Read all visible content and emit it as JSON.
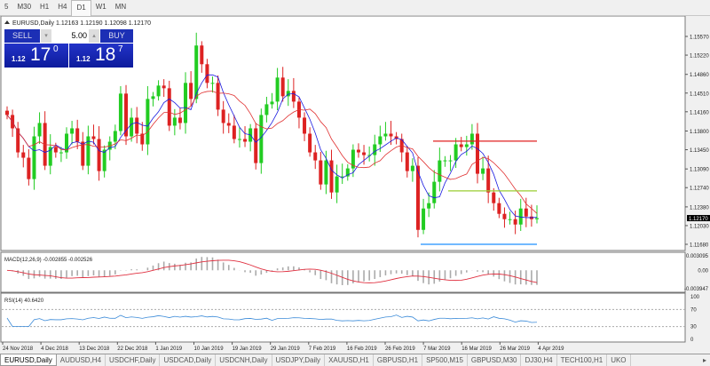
{
  "timeframes": [
    "5",
    "M30",
    "H1",
    "H4",
    "D1",
    "W1",
    "MN"
  ],
  "active_timeframe": "D1",
  "chart_header": "EURUSD,Daily  1.12163 1.12190 1.12098 1.12170",
  "trade_panel": {
    "sell_label": "SELL",
    "buy_label": "BUY",
    "lot": "5.00",
    "sell_small": "1.12",
    "sell_big": "17",
    "sell_sup": "0",
    "buy_small": "1.12",
    "buy_big": "18",
    "buy_sup": "7"
  },
  "price_axis": [
    "1.15570",
    "1.15220",
    "1.14860",
    "1.14510",
    "1.14160",
    "1.13800",
    "1.13450",
    "1.13090",
    "1.12740",
    "1.12380",
    "1.12030",
    "1.11680"
  ],
  "current_price": "1.12170",
  "macd": {
    "label": "MACD(12,26,9) -0.002855 -0.002526",
    "axis": [
      "0.003095",
      "0.00",
      "-0.003947"
    ]
  },
  "rsi": {
    "label": "RSI(14) 40.6420",
    "axis": [
      "100",
      "70",
      "30",
      "0"
    ]
  },
  "date_labels": [
    "24 Nov 2018",
    "4 Dec 2018",
    "13 Dec 2018",
    "22 Dec 2018",
    "1 Jan 2019",
    "10 Jan 2019",
    "19 Jan 2019",
    "29 Jan 2019",
    "7 Feb 2019",
    "16 Feb 2019",
    "26 Feb 2019",
    "7 Mar 2019",
    "16 Mar 2019",
    "26 Mar 2019",
    "4 Apr 2019"
  ],
  "tabs": [
    "EURUSD,Daily",
    "AUDUSD,H4",
    "USDCHF,Daily",
    "USDCAD,Daily",
    "USDCNH,Daily",
    "USDJPY,Daily",
    "XAUUSD,H1",
    "GBPUSD,H1",
    "SP500,M15",
    "GBPUSD,M30",
    "DJ30,H4",
    "TECH100,H1",
    "UKO"
  ],
  "colors": {
    "bull": "#22cc22",
    "bear": "#dd2222",
    "ma_fast": "#1a1ae0",
    "ma_slow": "#e03030",
    "macd_signal": "#e03040",
    "rsi": "#3a8ad8",
    "level_red": "#e02020",
    "level_green": "#9acd32",
    "level_blue": "#1e90ff"
  },
  "chart_data": {
    "type": "candlestick",
    "symbol": "EURUSD",
    "timeframe": "Daily",
    "ylim": [
      1.1168,
      1.1557
    ],
    "levels": [
      1.1361,
      1.1268,
      1.1168
    ],
    "close": [
      1.141,
      1.1385,
      1.134,
      1.133,
      1.129,
      1.137,
      1.1395,
      1.1315,
      1.135,
      1.134,
      1.134,
      1.1375,
      1.1385,
      1.136,
      1.1315,
      1.137,
      1.1365,
      1.1305,
      1.1345,
      1.136,
      1.138,
      1.145,
      1.137,
      1.1405,
      1.1375,
      1.1355,
      1.144,
      1.1445,
      1.1465,
      1.146,
      1.139,
      1.1405,
      1.1395,
      1.147,
      1.144,
      1.154,
      1.1505,
      1.147,
      1.147,
      1.142,
      1.1395,
      1.139,
      1.1365,
      1.1365,
      1.136,
      1.1385,
      1.132,
      1.141,
      1.143,
      1.1435,
      1.148,
      1.1445,
      1.1455,
      1.1435,
      1.1405,
      1.1375,
      1.134,
      1.1325,
      1.128,
      1.1325,
      1.1265,
      1.1295,
      1.1295,
      1.131,
      1.1345,
      1.134,
      1.1335,
      1.1335,
      1.1355,
      1.137,
      1.1375,
      1.137,
      1.1365,
      1.134,
      1.1305,
      1.1315,
      1.1195,
      1.1235,
      1.1245,
      1.1285,
      1.1325,
      1.1325,
      1.1325,
      1.1355,
      1.135,
      1.1355,
      1.1375,
      1.13,
      1.131,
      1.1265,
      1.1245,
      1.1225,
      1.1215,
      1.1215,
      1.1205,
      1.1235,
      1.122,
      1.1215,
      1.1217
    ]
  }
}
